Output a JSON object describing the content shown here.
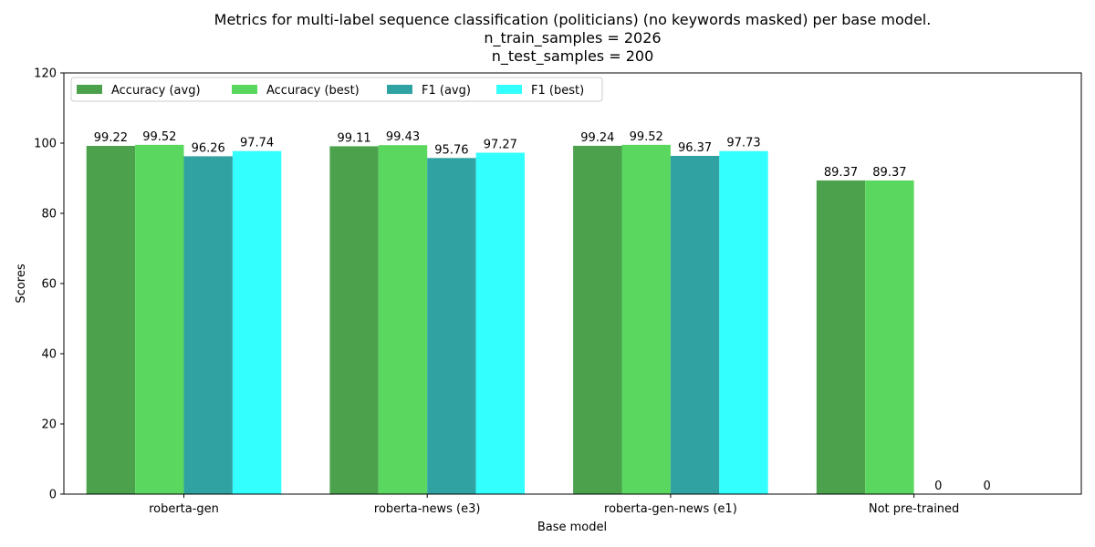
{
  "chart_data": {
    "type": "bar",
    "title_lines": [
      "Metrics for multi-label sequence classification (politicians) (no keywords masked) per base model.",
      "n_train_samples = 2026",
      "n_test_samples = 200"
    ],
    "xlabel": "Base model",
    "ylabel": "Scores",
    "ylim": [
      0,
      120
    ],
    "yticks": [
      0,
      20,
      40,
      60,
      80,
      100,
      120
    ],
    "categories": [
      "roberta-gen",
      "roberta-news (e3)",
      "roberta-gen-news (e1)",
      "Not pre-trained"
    ],
    "series": [
      {
        "name": "Accuracy (avg)",
        "color": "#4ca24c",
        "values": [
          99.22,
          99.11,
          99.24,
          89.37
        ]
      },
      {
        "name": "Accuracy (best)",
        "color": "#5ad75f",
        "values": [
          99.52,
          99.43,
          99.52,
          89.37
        ]
      },
      {
        "name": "F1 (avg)",
        "color": "#31a2a2",
        "values": [
          96.26,
          95.76,
          96.37,
          0
        ]
      },
      {
        "name": "F1 (best)",
        "color": "#33ffff",
        "values": [
          97.74,
          97.27,
          97.73,
          0
        ]
      }
    ],
    "legend_position": "upper-left",
    "grid": false
  }
}
